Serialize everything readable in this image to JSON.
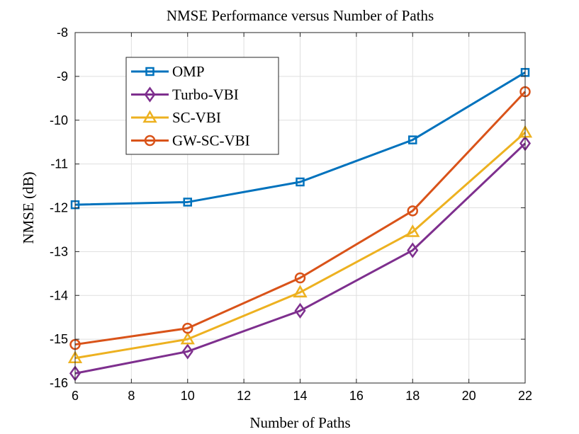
{
  "chart_data": {
    "type": "line",
    "title": "NMSE Performance versus Number of Paths",
    "xlabel": "Number of Paths",
    "ylabel": "NMSE (dB)",
    "x": [
      6,
      10,
      14,
      18,
      22
    ],
    "xlim": [
      6,
      22
    ],
    "ylim": [
      -16,
      -8
    ],
    "xticks": [
      6,
      8,
      10,
      12,
      14,
      16,
      18,
      20,
      22
    ],
    "yticks": [
      -8,
      -9,
      -10,
      -11,
      -12,
      -13,
      -14,
      -15,
      -16
    ],
    "grid": true,
    "legend_position": "top-left",
    "series": [
      {
        "name": "OMP",
        "color": "#0072BD",
        "marker": "square",
        "values": [
          -11.93,
          -11.87,
          -11.41,
          -10.45,
          -8.91
        ]
      },
      {
        "name": "Turbo-VBI",
        "color": "#7E2F8E",
        "marker": "diamond",
        "values": [
          -15.78,
          -15.28,
          -14.35,
          -12.97,
          -10.53
        ]
      },
      {
        "name": "SC-VBI",
        "color": "#EDB120",
        "marker": "triangle",
        "values": [
          -15.43,
          -15.0,
          -13.93,
          -12.55,
          -10.28
        ]
      },
      {
        "name": "GW-SC-VBI",
        "color": "#D95319",
        "marker": "circle",
        "values": [
          -15.12,
          -14.75,
          -13.6,
          -12.07,
          -9.35
        ]
      }
    ]
  }
}
